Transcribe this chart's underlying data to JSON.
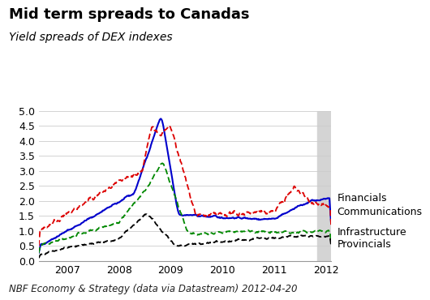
{
  "title": "Mid term spreads to Canadas",
  "subtitle": "Yield spreads of DEX indexes",
  "footer": "NBF Economy & Strategy (data via Datastream) 2012-04-20",
  "ylabel": "%",
  "ylim": [
    0.0,
    5.0
  ],
  "yticks": [
    0.0,
    0.5,
    1.0,
    1.5,
    2.0,
    2.5,
    3.0,
    3.5,
    4.0,
    4.5,
    5.0
  ],
  "shade_start": 2011.83,
  "shade_end": 2012.08,
  "series": {
    "Financials": {
      "color": "#0000cc",
      "linestyle": "solid",
      "linewidth": 1.5
    },
    "Communications": {
      "color": "#dd0000",
      "linestyle": "dashed",
      "linewidth": 1.3,
      "dashes": [
        4,
        2
      ]
    },
    "Infrastructure": {
      "color": "#008800",
      "linestyle": "dashed",
      "linewidth": 1.3,
      "dashes": [
        4,
        2
      ]
    },
    "Provincials": {
      "color": "#000000",
      "linestyle": "dashed",
      "linewidth": 1.3,
      "dashes": [
        4,
        2
      ]
    }
  },
  "legend_order": [
    "Financials",
    "Communications",
    "Infrastructure",
    "Provincials"
  ],
  "background_color": "#ffffff",
  "title_fontsize": 13,
  "subtitle_fontsize": 10,
  "footer_fontsize": 8.5,
  "tick_fontsize": 9,
  "legend_fontsize": 9,
  "xtick_years": [
    2007,
    2008,
    2009,
    2010,
    2011,
    2012
  ],
  "xmin": 2006.45,
  "xmax": 2012.1
}
